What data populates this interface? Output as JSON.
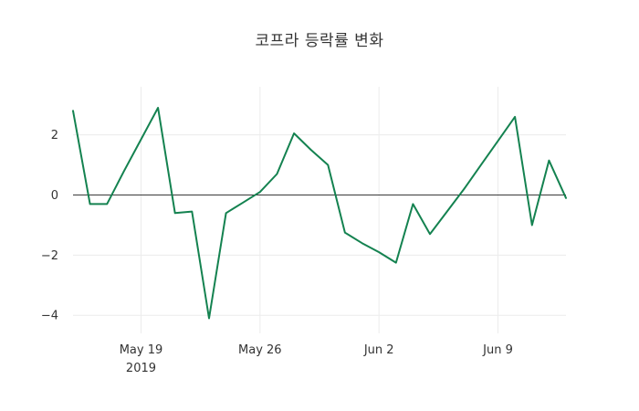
{
  "chart_data": {
    "type": "line",
    "title": "코프라 등락률 변화",
    "xlabel": "",
    "ylabel": "",
    "line_color": "#148250",
    "zero_line_color": "#3a3a3a",
    "grid_color": "#ececec",
    "background_color": "#ffffff",
    "x": [
      "May 15",
      "May 16",
      "May 17",
      "May 18",
      "May 19",
      "May 20",
      "May 21",
      "May 22",
      "May 23",
      "May 24",
      "May 25",
      "May 26",
      "May 27",
      "May 28",
      "May 29",
      "May 30",
      "May 31",
      "Jun 1",
      "Jun 2",
      "Jun 3",
      "Jun 4",
      "Jun 5",
      "Jun 6",
      "Jun 7",
      "Jun 8",
      "Jun 9",
      "Jun 10",
      "Jun 11",
      "Jun 12",
      "Jun 13"
    ],
    "values": [
      2.8,
      -0.3,
      -0.3,
      0.8,
      1.85,
      2.9,
      -0.6,
      -0.55,
      -4.1,
      -0.6,
      -0.25,
      0.1,
      0.7,
      2.05,
      1.5,
      1.0,
      -1.25,
      -1.6,
      -1.9,
      -2.25,
      -0.3,
      -1.3,
      -0.55,
      0.2,
      1.0,
      1.8,
      2.6,
      -1.0,
      1.15,
      -0.1
    ],
    "xticks": [
      {
        "index": 4,
        "label": "May 19",
        "sublabel": "2019"
      },
      {
        "index": 11,
        "label": "May 26",
        "sublabel": ""
      },
      {
        "index": 18,
        "label": "Jun 2",
        "sublabel": ""
      },
      {
        "index": 25,
        "label": "Jun 9",
        "sublabel": ""
      }
    ],
    "yticks": [
      {
        "value": -4,
        "label": "−4"
      },
      {
        "value": -2,
        "label": "−2"
      },
      {
        "value": 0,
        "label": "0"
      },
      {
        "value": 2,
        "label": "2"
      }
    ],
    "ylim": [
      -4.6,
      3.6
    ],
    "grid": true,
    "legend": "none"
  }
}
